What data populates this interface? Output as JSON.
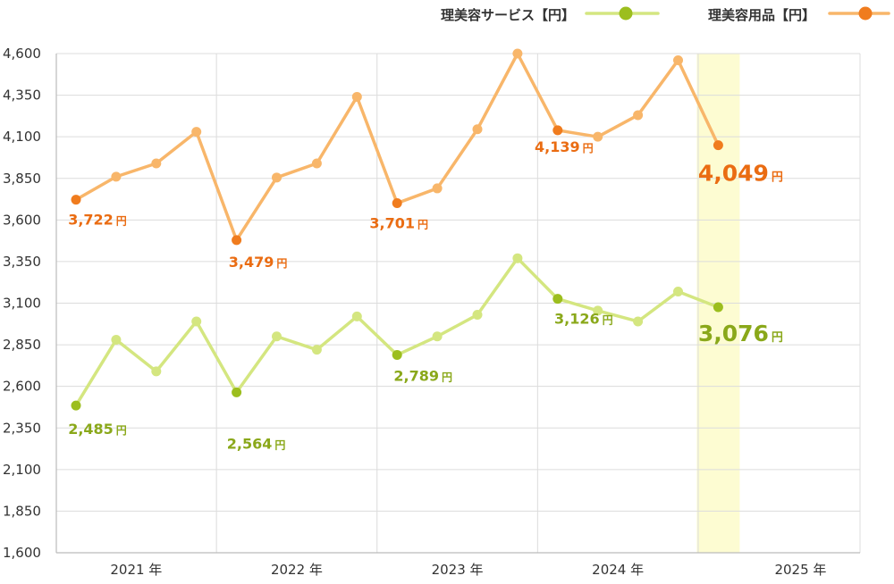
{
  "chart_data": {
    "type": "line",
    "ylim": [
      1600,
      4600
    ],
    "yticks": [
      1600,
      1850,
      2100,
      2350,
      2600,
      2850,
      3100,
      3350,
      3600,
      3850,
      4100,
      4350,
      4600
    ],
    "ytick_labels": [
      "1,600",
      "1,850",
      "2,100",
      "2,350",
      "2,600",
      "2,850",
      "3,100",
      "3,350",
      "3,600",
      "3,850",
      "4,100",
      "4,350",
      "4,600"
    ],
    "year_labels": [
      "2021 年",
      "2022 年",
      "2023 年",
      "2024 年",
      "2025 年"
    ],
    "grid": true,
    "legend_position": "top-right",
    "highlight_point_index": 16,
    "highlight_color": "#fdfcd2",
    "series": [
      {
        "name": "理美容サービス【円】",
        "line_color": "#d4e680",
        "marker_color": "#d4e680",
        "key_marker_color": "#9cbe1e",
        "label_color": "#8aa81a",
        "values": [
          2485,
          2880,
          2690,
          2990,
          2564,
          2900,
          2820,
          3020,
          2789,
          2900,
          3030,
          3370,
          3126,
          3055,
          2990,
          3170,
          3076
        ],
        "labels": [
          {
            "index": 0,
            "text": "2,485",
            "unit": "円"
          },
          {
            "index": 4,
            "text": "2,564",
            "unit": "円"
          },
          {
            "index": 8,
            "text": "2,789",
            "unit": "円"
          },
          {
            "index": 12,
            "text": "3,126",
            "unit": "円"
          },
          {
            "index": 16,
            "text": "3,076",
            "unit": "円",
            "emphasis": true
          }
        ]
      },
      {
        "name": "理美容用品【円】",
        "line_color": "#f8b66a",
        "marker_color": "#f8b66a",
        "key_marker_color": "#f07c1e",
        "label_color": "#ea6c12",
        "values": [
          3722,
          3860,
          3940,
          4130,
          3479,
          3855,
          3940,
          4340,
          3701,
          3790,
          4145,
          4600,
          4139,
          4100,
          4230,
          4560,
          4049
        ],
        "labels": [
          {
            "index": 0,
            "text": "3,722",
            "unit": "円"
          },
          {
            "index": 4,
            "text": "3,479",
            "unit": "円"
          },
          {
            "index": 8,
            "text": "3,701",
            "unit": "円"
          },
          {
            "index": 12,
            "text": "4,139",
            "unit": "円"
          },
          {
            "index": 16,
            "text": "4,049",
            "unit": "円",
            "emphasis": true
          }
        ]
      }
    ]
  }
}
